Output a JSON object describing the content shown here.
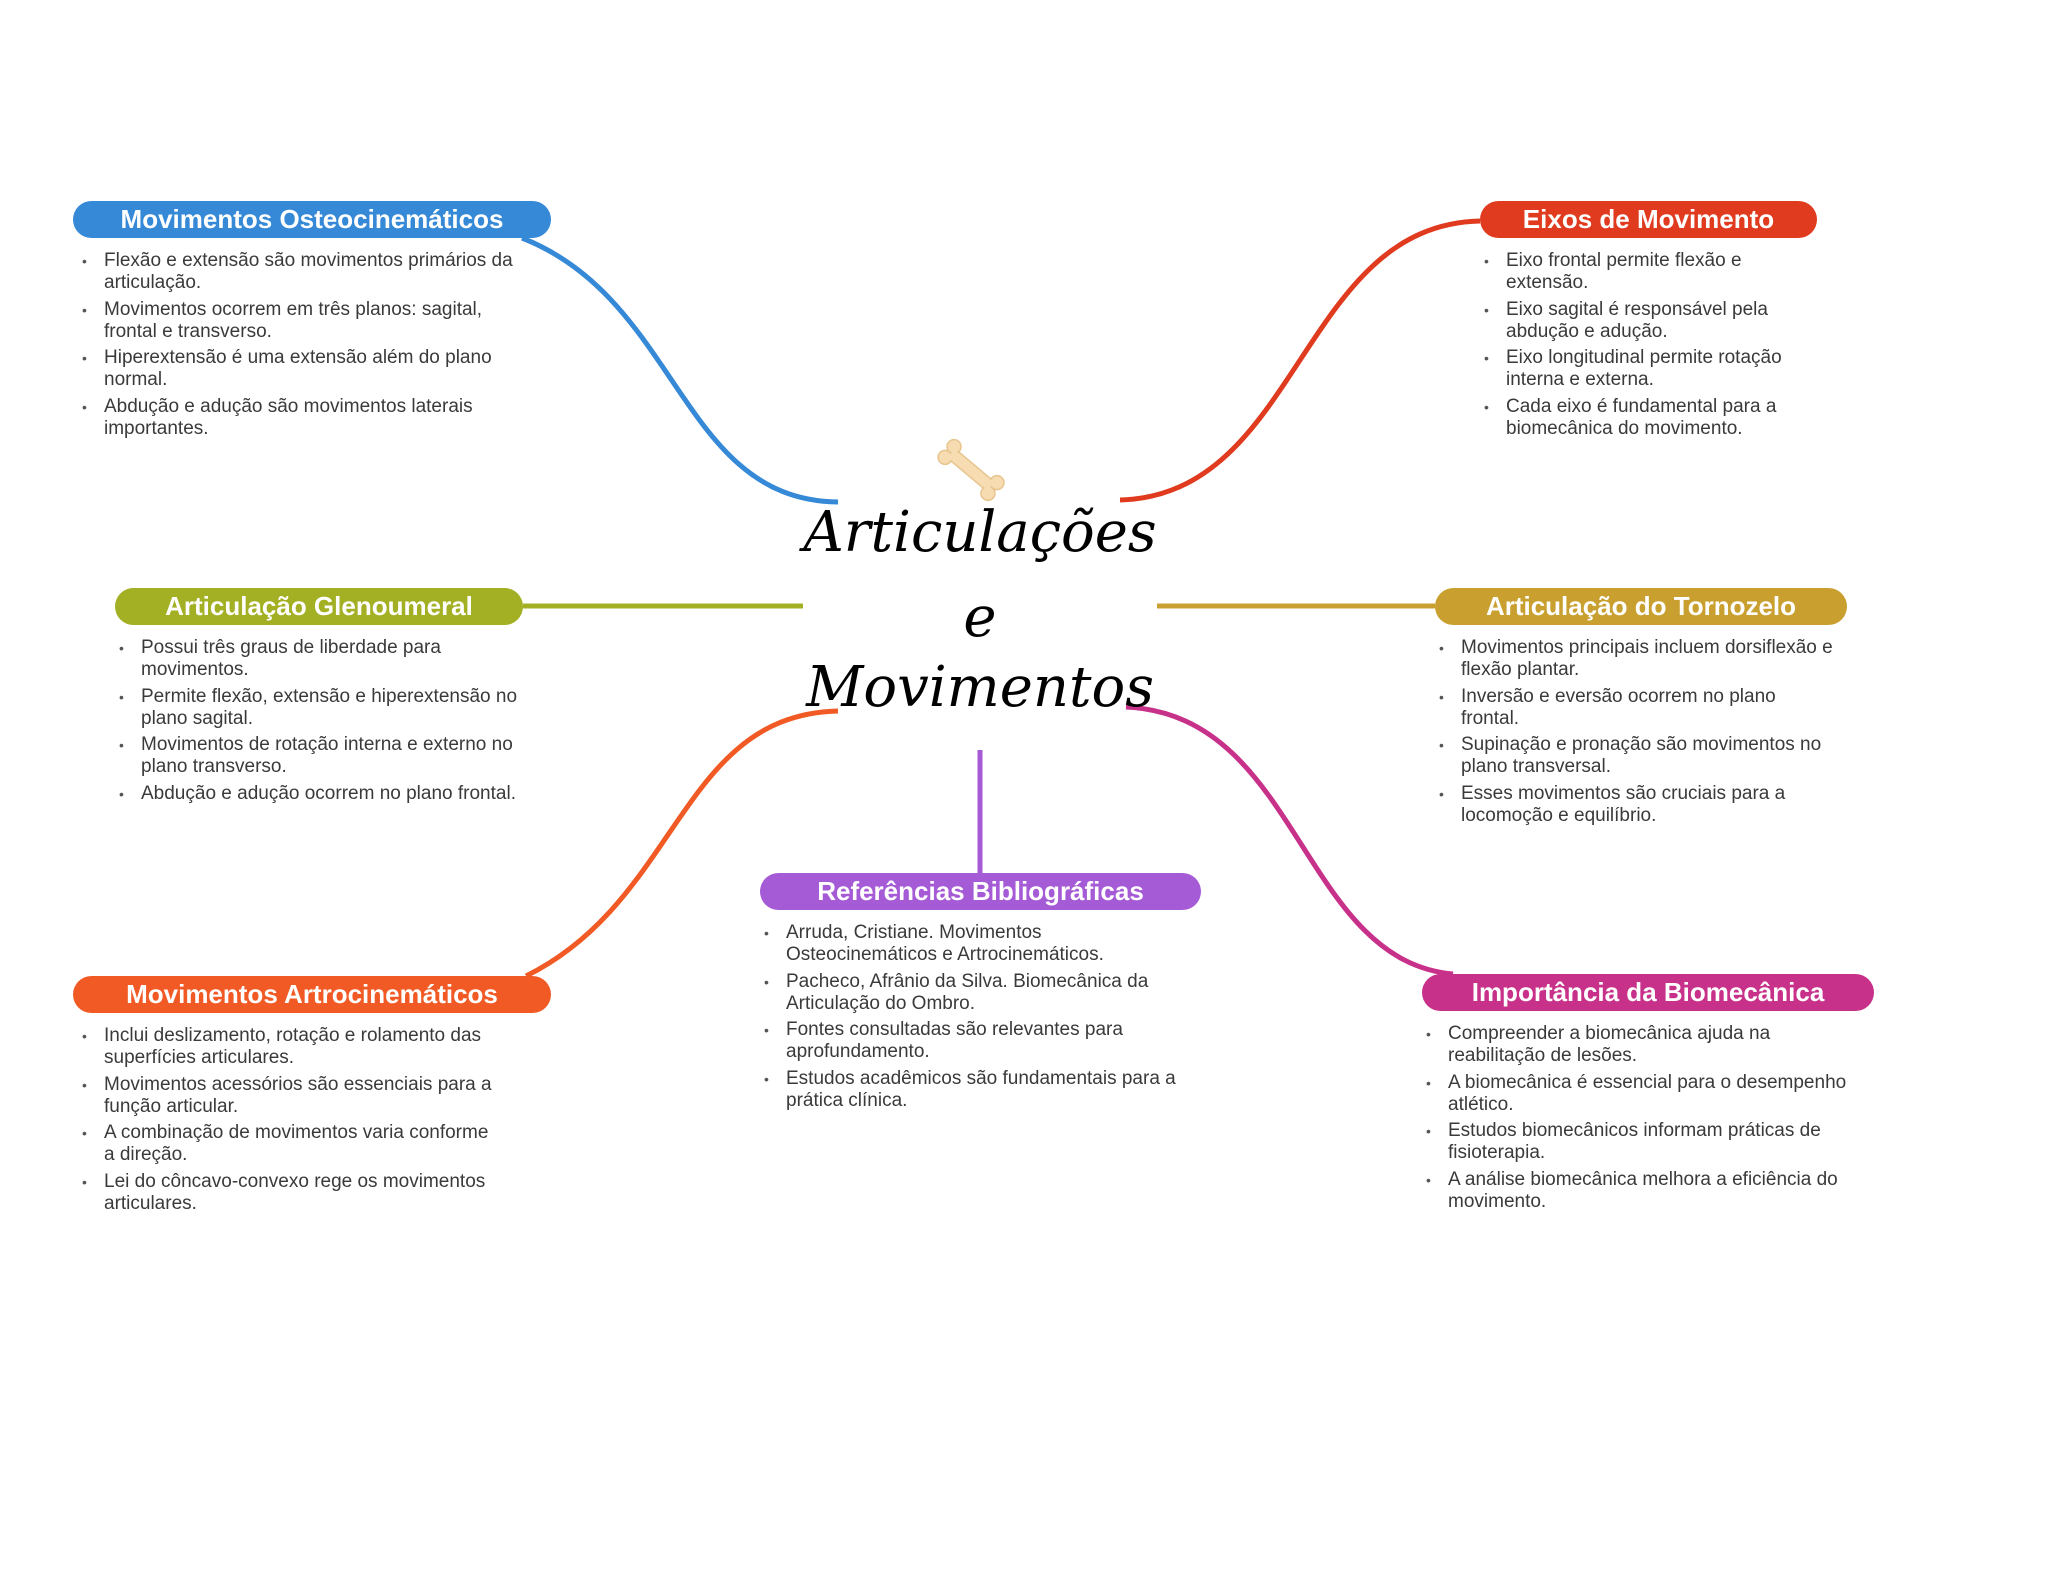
{
  "central": {
    "title_line1": "Articulações",
    "title_line2": "e",
    "title_line3": "Movimentos",
    "icon": "bone-icon"
  },
  "branches": [
    {
      "id": "osteo",
      "title": "Movimentos Osteocinemáticos",
      "color": "#3589d6",
      "items": [
        "Flexão e extensão são movimentos primários da articulação.",
        "Movimentos ocorrem em três planos: sagital, frontal e transverso.",
        "Hiperextensão é uma extensão além do plano normal.",
        "Abdução e adução são movimentos laterais importantes."
      ]
    },
    {
      "id": "eixos",
      "title": "Eixos de Movimento",
      "color": "#e03a1f",
      "items": [
        "Eixo frontal permite flexão e extensão.",
        "Eixo sagital é responsável pela abdução e adução.",
        "Eixo longitudinal permite rotação interna e externa.",
        "Cada eixo é fundamental para a biomecânica do movimento."
      ]
    },
    {
      "id": "glenoumeral",
      "title": "Articulação Glenoumeral",
      "color": "#a3b023",
      "items": [
        "Possui três graus de liberdade para movimentos.",
        "Permite flexão, extensão e hiperextensão no plano sagital.",
        "Movimentos de rotação interna e externo no plano transverso.",
        "Abdução e adução ocorrem no plano frontal."
      ]
    },
    {
      "id": "tornozelo",
      "title": "Articulação do Tornozelo",
      "color": "#c9a030",
      "items": [
        "Movimentos principais incluem dorsiflexão e flexão plantar.",
        "Inversão e eversão ocorrem no plano frontal.",
        "Supinação e pronação são movimentos no plano transversal.",
        "Esses movimentos são cruciais para a locomoção e equilíbrio."
      ]
    },
    {
      "id": "artro",
      "title": "Movimentos Artrocinemáticos",
      "color": "#f15a24",
      "items": [
        "Inclui deslizamento, rotação e rolamento das superfícies articulares.",
        "Movimentos acessórios são essenciais para a função articular.",
        "A combinação de movimentos varia conforme a direção.",
        "Lei do côncavo-convexo rege os movimentos articulares."
      ]
    },
    {
      "id": "referencias",
      "title": "Referências Bibliográficas",
      "color": "#a65bd6",
      "items": [
        "Arruda, Cristiane. Movimentos Osteocinemáticos e Artrocinemáticos.",
        "Pacheco, Afrânio da Silva. Biomecânica da Articulação do Ombro.",
        "Fontes consultadas são relevantes para aprofundamento.",
        "Estudos acadêmicos são fundamentais para a prática clínica."
      ]
    },
    {
      "id": "biomecanica",
      "title": "Importância da Biomecânica",
      "color": "#c8318a",
      "items": [
        "Compreender a biomecânica ajuda na reabilitação de lesões.",
        "A biomecânica é essencial para o desempenho atlético.",
        "Estudos biomecânicos informam práticas de fisioterapia.",
        "A análise biomecânica melhora a eficiência do movimento."
      ]
    }
  ]
}
